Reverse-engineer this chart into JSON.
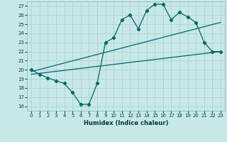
{
  "xlabel": "Humidex (Indice chaleur)",
  "bg_color": "#c8e8e8",
  "grid_color": "#b0d4d4",
  "line_color": "#006868",
  "xlim": [
    -0.5,
    23.5
  ],
  "ylim": [
    15.5,
    27.5
  ],
  "xticks": [
    0,
    1,
    2,
    3,
    4,
    5,
    6,
    7,
    8,
    9,
    10,
    11,
    12,
    13,
    14,
    15,
    16,
    17,
    18,
    19,
    20,
    21,
    22,
    23
  ],
  "yticks": [
    16,
    17,
    18,
    19,
    20,
    21,
    22,
    23,
    24,
    25,
    26,
    27
  ],
  "line1_x": [
    0,
    1,
    2,
    3,
    4,
    5,
    6,
    7,
    8,
    9,
    10,
    11,
    12,
    13,
    14,
    15,
    16,
    17,
    18,
    19,
    20,
    21,
    22,
    23
  ],
  "line1_y": [
    20.0,
    19.5,
    19.1,
    18.8,
    18.5,
    17.5,
    16.2,
    16.2,
    18.5,
    23.0,
    23.5,
    25.5,
    26.0,
    24.5,
    26.5,
    27.2,
    27.2,
    25.5,
    26.3,
    25.8,
    25.2,
    23.0,
    22.0,
    22.0
  ],
  "line2_x": [
    0,
    23
  ],
  "line2_y": [
    19.8,
    25.2
  ],
  "line3_x": [
    0,
    23
  ],
  "line3_y": [
    19.5,
    22.0
  ]
}
